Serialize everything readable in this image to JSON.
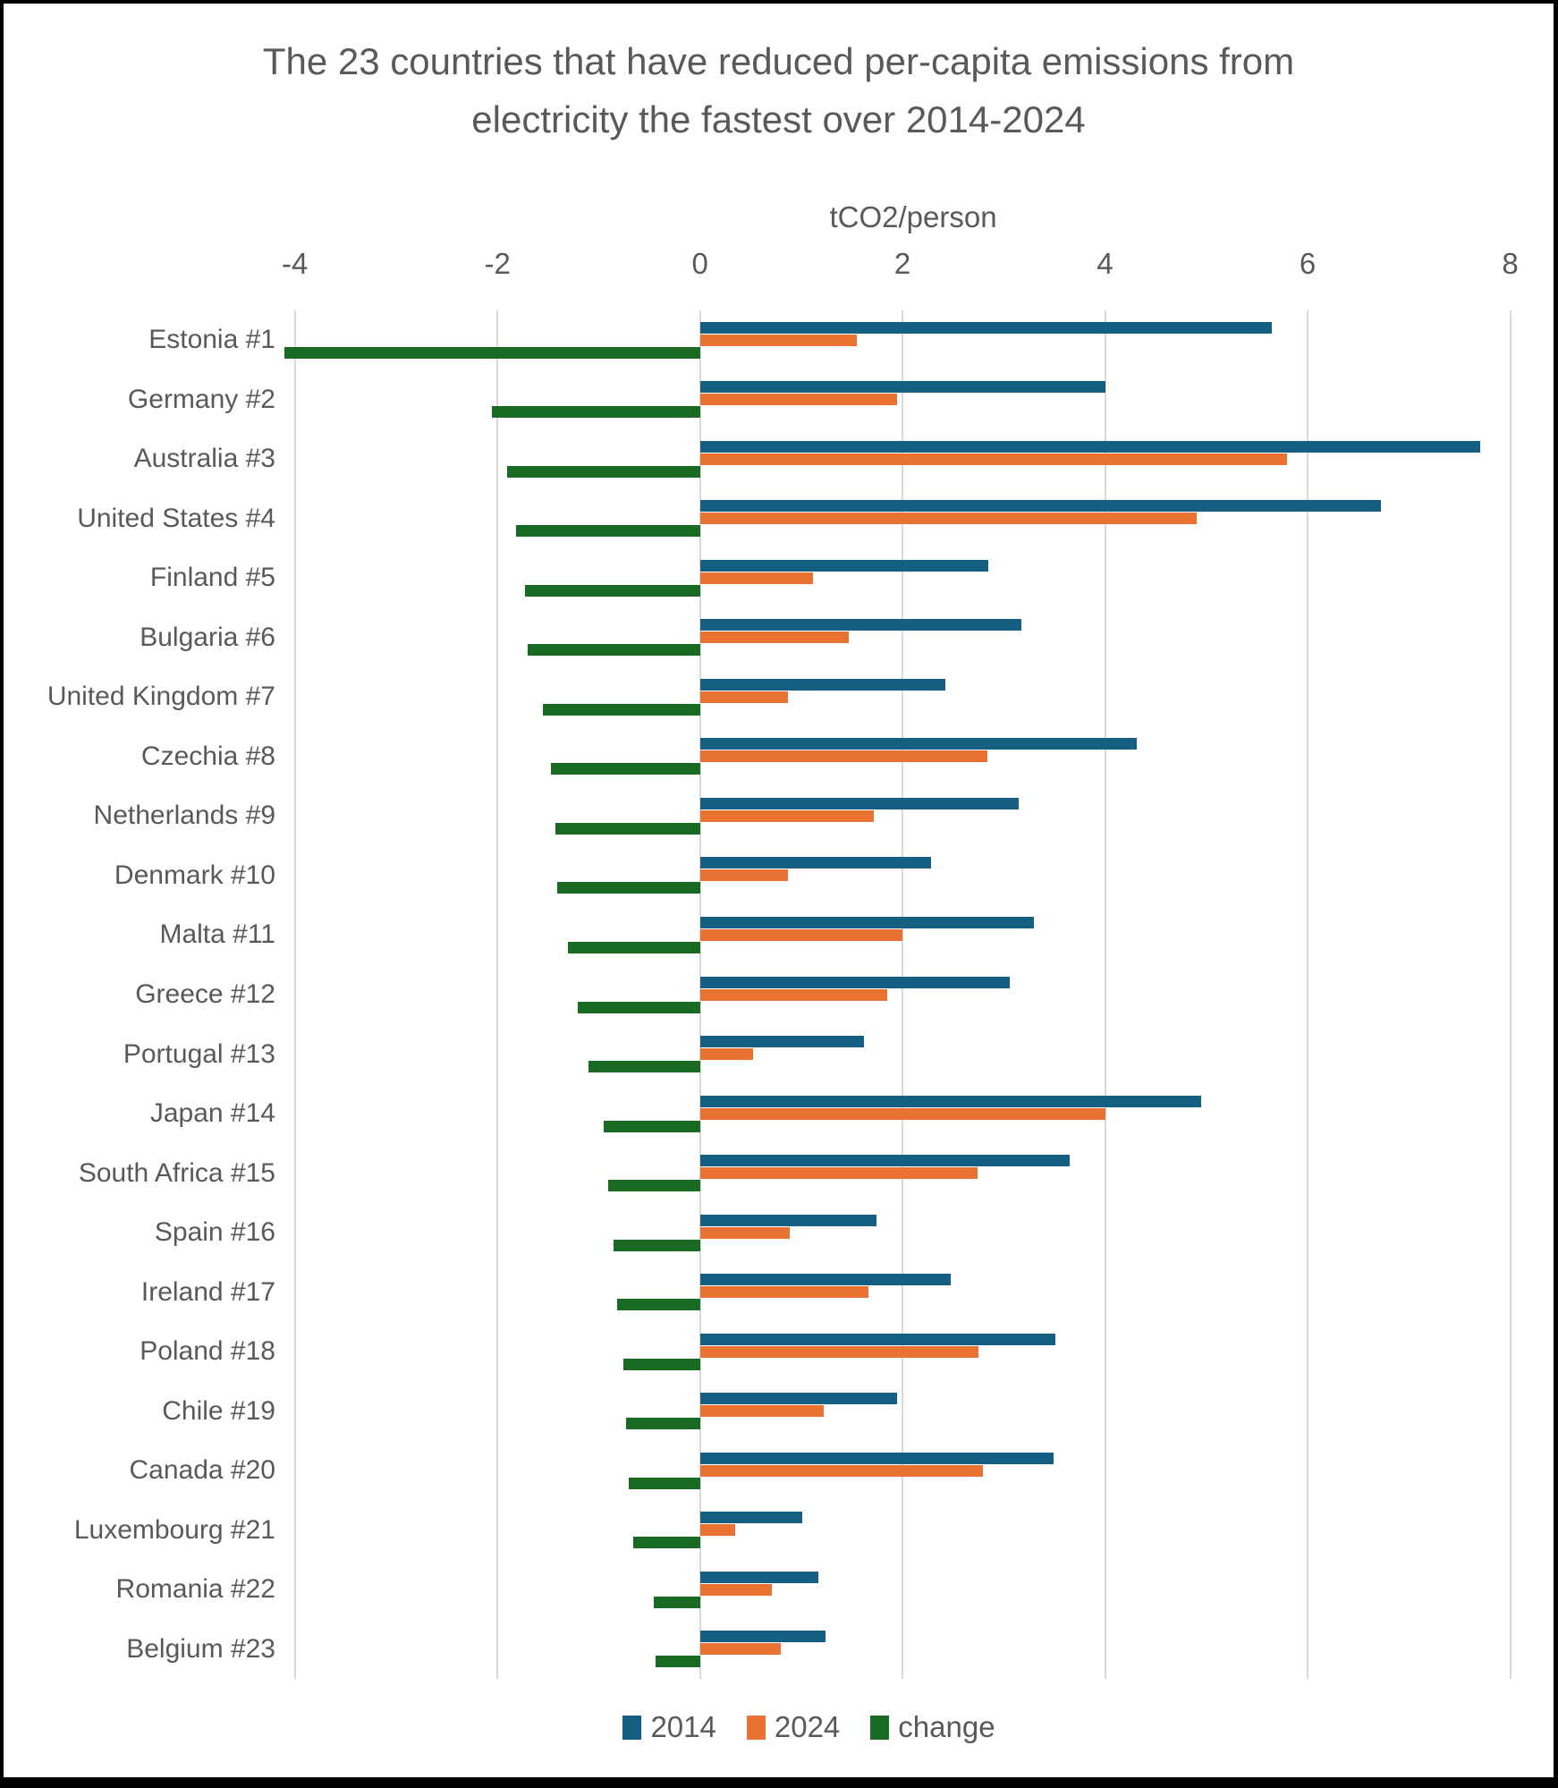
{
  "title": "The 23 countries that have reduced per-capita emissions from electricity the fastest over 2014-2024",
  "styles": {
    "text_color": "#595959",
    "gridline_color": "#D9D9D9",
    "frame_border_color": "#000000",
    "background_color": "#FFFFFF"
  },
  "chart_data": {
    "type": "bar",
    "orientation": "horizontal",
    "title": "The 23 countries that have reduced per-capita emissions from electricity the fastest over 2014-2024",
    "axis_title": "tCO2/person",
    "xlabel": "tCO2/person",
    "ylabel": "",
    "x_ticks": [
      -4,
      -2,
      0,
      2,
      4,
      6,
      8
    ],
    "x_range": [
      -4.05,
      8.26
    ],
    "grid": true,
    "legend_position": "bottom",
    "categories": [
      "Estonia #1",
      "Germany #2",
      "Australia #3",
      "United States #4",
      "Finland #5",
      "Bulgaria #6",
      "United Kingdom #7",
      "Czechia #8",
      "Netherlands #9",
      "Denmark #10",
      "Malta #11",
      "Greece #12",
      "Portugal #13",
      "Japan #14",
      "South Africa #15",
      "Spain #16",
      "Ireland #17",
      "Poland #18",
      "Chile #19",
      "Canada #20",
      "Luxembourg #21",
      "Romania #22",
      "Belgium #23"
    ],
    "series": [
      {
        "name": "2014",
        "color": "#156082",
        "values": [
          5.65,
          4.0,
          7.7,
          6.72,
          2.85,
          3.17,
          2.42,
          4.31,
          3.15,
          2.28,
          3.3,
          3.06,
          1.62,
          4.95,
          3.65,
          1.74,
          2.48,
          3.51,
          1.95,
          3.49,
          1.01,
          1.17,
          1.24
        ]
      },
      {
        "name": "2024",
        "color": "#E97132",
        "values": [
          1.55,
          1.95,
          5.8,
          4.9,
          1.12,
          1.47,
          0.87,
          2.84,
          1.72,
          0.87,
          2.0,
          1.85,
          0.52,
          4.0,
          2.74,
          0.89,
          1.66,
          2.75,
          1.22,
          2.79,
          0.35,
          0.71,
          0.8
        ]
      },
      {
        "name": "change",
        "color": "#196B24",
        "values": [
          -4.1,
          -2.05,
          -1.9,
          -1.82,
          -1.73,
          -1.7,
          -1.55,
          -1.47,
          -1.43,
          -1.41,
          -1.3,
          -1.21,
          -1.1,
          -0.95,
          -0.91,
          -0.85,
          -0.82,
          -0.76,
          -0.73,
          -0.7,
          -0.66,
          -0.46,
          -0.44
        ]
      }
    ]
  }
}
